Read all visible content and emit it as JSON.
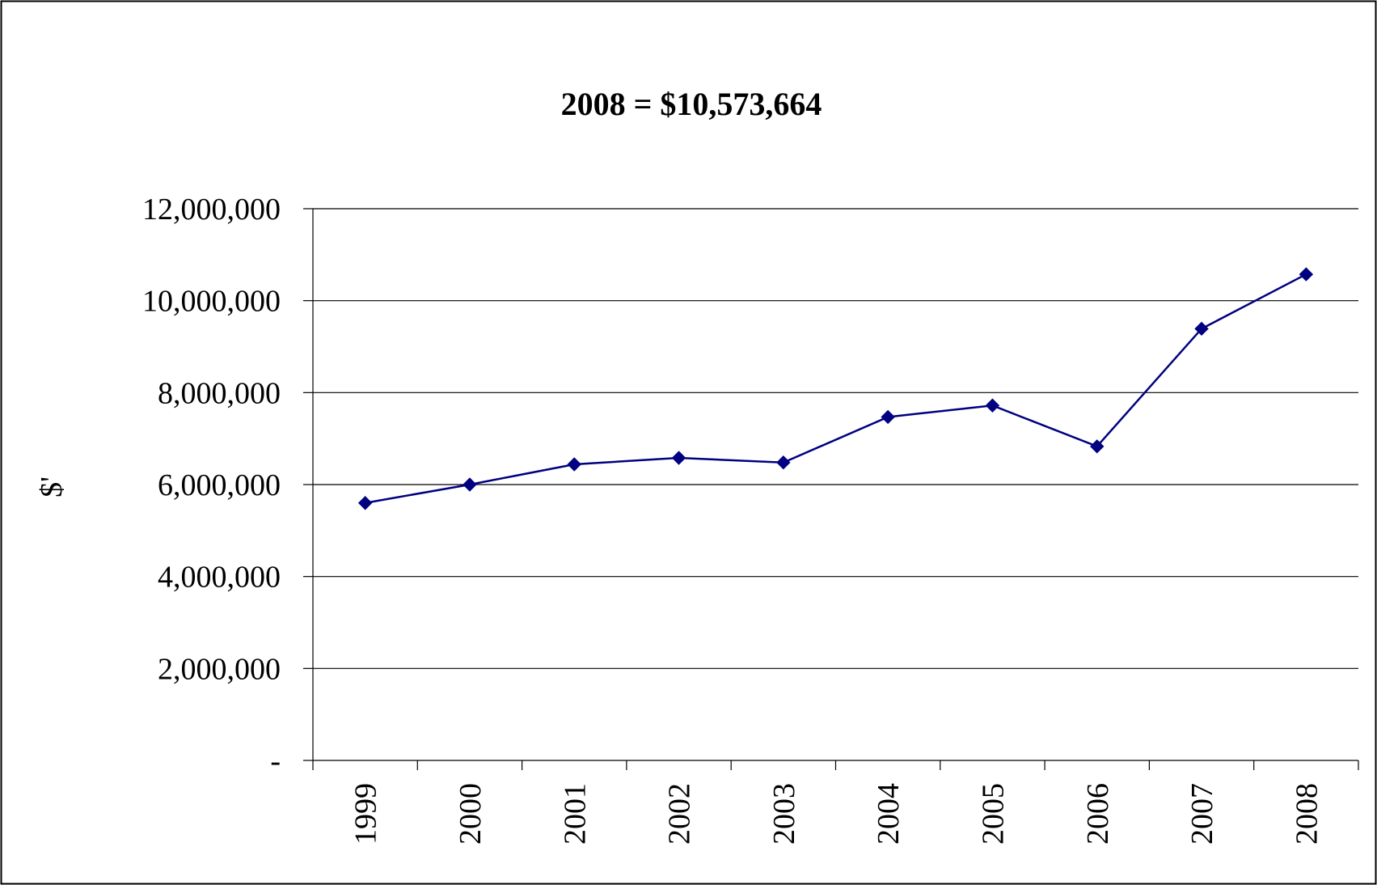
{
  "chart_data": {
    "type": "line",
    "title": "2008 = $10,573,664",
    "xlabel": "",
    "ylabel": "$'",
    "categories": [
      "1999",
      "2000",
      "2001",
      "2002",
      "2003",
      "2004",
      "2005",
      "2006",
      "2007",
      "2008"
    ],
    "series": [
      {
        "values": [
          5600000,
          6000000,
          6440000,
          6580000,
          6480000,
          7470000,
          7720000,
          6830000,
          9390000,
          10573664
        ],
        "color": "#000080"
      }
    ],
    "ylim": [
      0,
      12000000
    ],
    "yticks": [
      0,
      2000000,
      4000000,
      6000000,
      8000000,
      10000000,
      12000000
    ],
    "ytick_labels": [
      "-",
      "2,000,000",
      "4,000,000",
      "6,000,000",
      "8,000,000",
      "10,000,000",
      "12,000,000"
    ],
    "grid": true,
    "legend": "none",
    "marker": "diamond"
  }
}
